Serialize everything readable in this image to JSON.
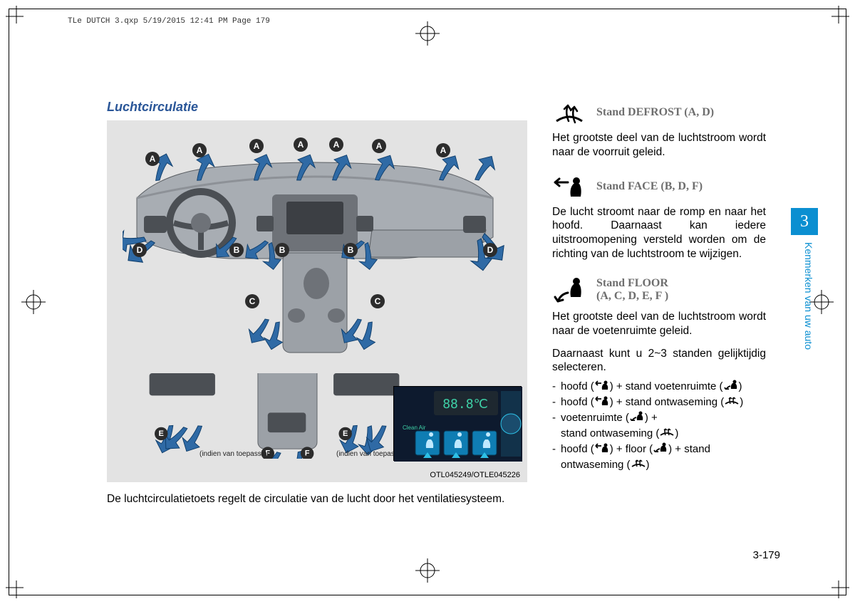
{
  "header": "TLe DUTCH 3.qxp  5/19/2015  12:41 PM  Page 179",
  "title": "Luchtcirculatie",
  "figure": {
    "labels": [
      "A",
      "A",
      "A",
      "A",
      "A",
      "A",
      "A",
      "D",
      "B",
      "B",
      "B",
      "D",
      "C",
      "C",
      "E",
      "E",
      "F",
      "F"
    ],
    "note_left": "(indien van toepassing)",
    "note_right": "(indien van toepassing)",
    "caption": "OTL045249/OTLE045226",
    "control_buttons_count": 3,
    "lcd_text": "88.8℃",
    "lcd_sub": "Clean Air",
    "colors": {
      "bg": "#e3e3e3",
      "dash_body": "#a8adb3",
      "dash_dark": "#6e7278",
      "arrow": "#2f6aa5",
      "arrow_stroke": "#0e3d6b",
      "label_circle": "#2c2c2c",
      "label_text": "#ffffff",
      "photo_bg": "#0d1a2e",
      "btn_blue": "#0f7db3",
      "btn_glow": "#2dc0e6",
      "lcd_bg": "#1e2830",
      "lcd_text": "#3ecfa6"
    }
  },
  "below_figure": "De luchtcirculatietoets regelt de circulatie van de lucht door het ventilatiesysteem.",
  "modes": {
    "defrost": {
      "label": "Stand DEFROST (A, D)",
      "desc": "Het grootste deel van de luchtstroom wordt naar de voorruit geleid."
    },
    "face": {
      "label": "Stand FACE (B, D, F)",
      "desc": "De lucht stroomt naar de romp en naar het hoofd. Daarnaast kan iedere uitstroomopening versteld worden om de richting van de luchtstroom te wijzigen."
    },
    "floor": {
      "label_line1": "Stand FLOOR",
      "label_line2": "(A, C, D, E, F )",
      "desc": "Het grootste deel van de luchtstroom wordt naar de voetenruimte geleid."
    }
  },
  "combo_intro": "Daarnaast kunt u 2~3 standen gelijktijdig selecteren.",
  "combos": [
    {
      "parts": [
        "hoofd (",
        "face",
        ") + stand voetenruimte (",
        "floor",
        ")"
      ]
    },
    {
      "parts": [
        "hoofd (",
        "face",
        ") + stand ontwaseming (",
        "defrost",
        ")"
      ]
    },
    {
      "parts": [
        "voetenruimte (",
        "floor",
        ") +"
      ],
      "cont": [
        "stand ontwaseming (",
        "defrost",
        ")"
      ]
    },
    {
      "parts": [
        "hoofd (",
        "face",
        ") + floor (",
        "floor",
        ") + stand"
      ],
      "cont": [
        "ontwaseming (",
        "defrost",
        ")"
      ]
    }
  ],
  "side": {
    "chapter": "3",
    "label": "Kenmerken van uw auto"
  },
  "page_number": "3-179",
  "icon_colors": {
    "line": "#000000"
  }
}
